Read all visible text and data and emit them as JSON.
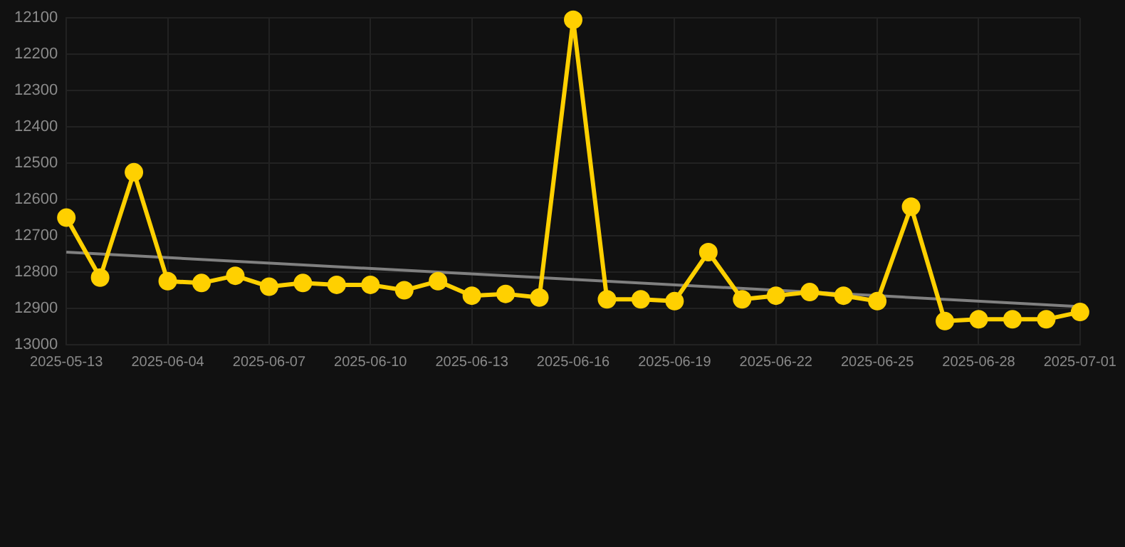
{
  "chart_data": {
    "type": "line",
    "categories": [
      "2025-05-13",
      null,
      null,
      "2025-06-04",
      null,
      null,
      "2025-06-07",
      null,
      null,
      "2025-06-10",
      null,
      null,
      "2025-06-13",
      null,
      null,
      "2025-06-16",
      null,
      null,
      "2025-06-19",
      null,
      null,
      "2025-06-22",
      null,
      null,
      "2025-06-25",
      null,
      null,
      "2025-06-28",
      null,
      null,
      "2025-07-01"
    ],
    "series": [
      {
        "color": "#ffd000",
        "marker": "circle",
        "values": [
          12650,
          12815,
          12525,
          12825,
          12830,
          12810,
          12840,
          12830,
          12835,
          12835,
          12850,
          12825,
          12865,
          12860,
          12870,
          12105,
          12875,
          12875,
          12880,
          12745,
          12875,
          12865,
          12855,
          12865,
          12880,
          12620,
          12935,
          12930,
          12930,
          12930,
          12910
        ]
      },
      {
        "type": "line",
        "color": "#808080",
        "marker": "none",
        "values": [
          12745,
          null,
          null,
          null,
          null,
          null,
          null,
          null,
          null,
          null,
          null,
          null,
          null,
          null,
          null,
          null,
          null,
          null,
          null,
          null,
          null,
          null,
          null,
          null,
          null,
          null,
          null,
          null,
          null,
          null,
          12895
        ]
      }
    ],
    "ylim": [
      13000,
      12100
    ],
    "yticks": [
      12100,
      12200,
      12300,
      12400,
      12500,
      12600,
      12700,
      12800,
      12900,
      13000
    ],
    "grid": true,
    "legend": false
  }
}
